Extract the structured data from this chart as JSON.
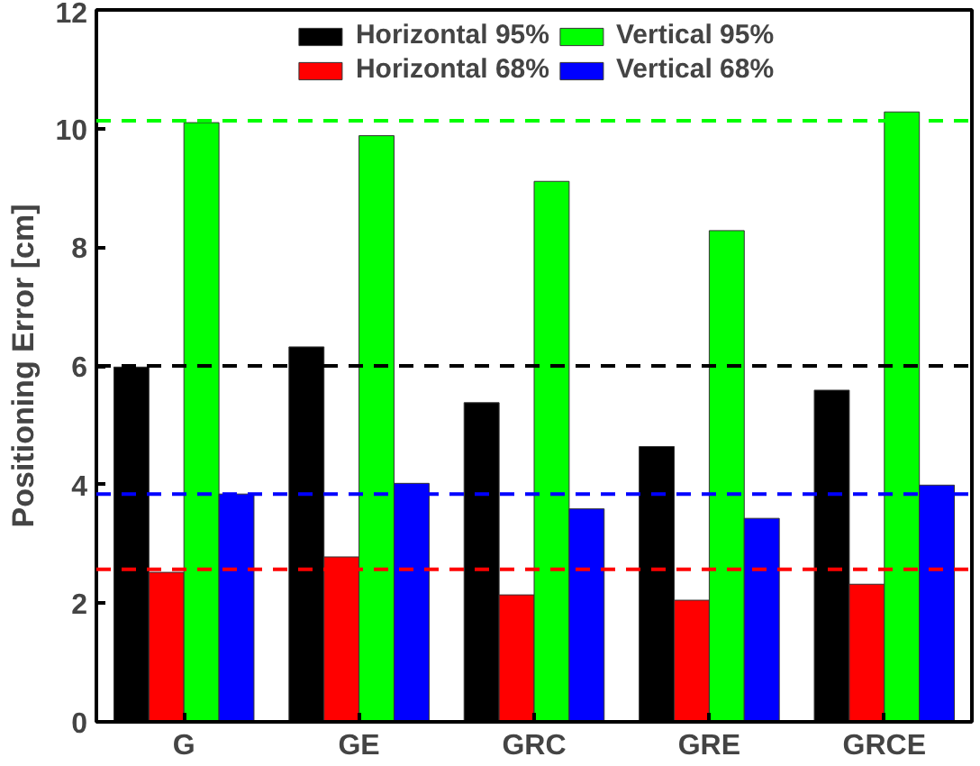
{
  "chart_data": {
    "type": "bar",
    "ylabel": "Positioning Error [cm]",
    "categories": [
      "G",
      "GE",
      "GRC",
      "GRE",
      "GRCE"
    ],
    "series": [
      {
        "name": "Horizontal 95%",
        "color": "#000000",
        "values": [
          5.98,
          6.32,
          5.38,
          4.64,
          5.59
        ]
      },
      {
        "name": "Horizontal 68%",
        "color": "#ff0000",
        "values": [
          2.52,
          2.78,
          2.14,
          2.05,
          2.32
        ]
      },
      {
        "name": "Vertical 95%",
        "color": "#00ff00",
        "values": [
          10.1,
          9.88,
          9.11,
          8.28,
          10.28
        ]
      },
      {
        "name": "Vertical 68%",
        "color": "#0000ff",
        "values": [
          3.84,
          4.02,
          3.59,
          3.43,
          3.99
        ]
      }
    ],
    "ylim": [
      0,
      12
    ],
    "yticks": [
      0,
      2,
      4,
      6,
      8,
      10,
      12
    ],
    "grid": false,
    "legend": "top",
    "ref_lines": [
      {
        "axis": "y",
        "value": 10.13,
        "color": "#00ff00",
        "line_style": "dashed"
      },
      {
        "axis": "y",
        "value": 6.0,
        "color": "#000000",
        "line_style": "dashed"
      },
      {
        "axis": "y",
        "value": 3.84,
        "color": "#0000ff",
        "line_style": "dashed"
      },
      {
        "axis": "y",
        "value": 2.57,
        "color": "#ff0000",
        "line_style": "dashed"
      }
    ]
  }
}
